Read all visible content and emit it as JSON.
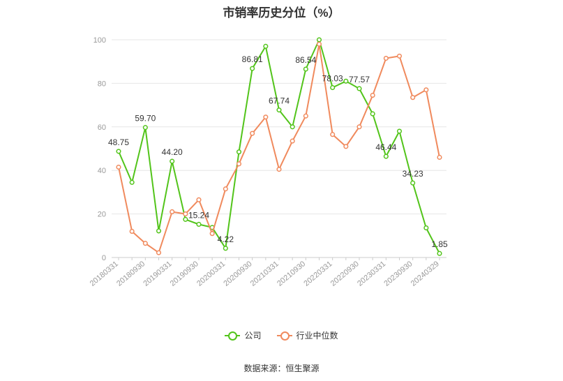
{
  "title": "市销率历史分位（%）",
  "source": "数据来源：恒生聚源",
  "colors": {
    "company": "#52c41a",
    "industry": "#f08a5d",
    "grid": "#e6e6e6",
    "axis_text": "#999999",
    "label_text": "#333333"
  },
  "chart_data": {
    "type": "line",
    "ylim": [
      0,
      100
    ],
    "yticks": [
      0,
      20,
      40,
      60,
      80,
      100
    ],
    "x": [
      "20180331",
      "",
      "20180930",
      "",
      "20190331",
      "",
      "20190930",
      "",
      "20200331",
      "",
      "20200930",
      "",
      "20210331",
      "",
      "20210930",
      "",
      "20220331",
      "",
      "20220930",
      "",
      "20230331",
      "",
      "20230930",
      "",
      "20240329"
    ],
    "series": [
      {
        "name": "公司",
        "key": "company",
        "values": [
          48.75,
          34.5,
          59.7,
          12.2,
          44.2,
          17.5,
          15.24,
          13.8,
          4.22,
          48.5,
          86.81,
          97.0,
          67.74,
          60.0,
          86.54,
          100.0,
          78.03,
          81.0,
          77.57,
          66.0,
          46.44,
          58.0,
          34.23,
          13.6,
          1.85
        ],
        "labels": [
          "48.75",
          "",
          "59.70",
          "",
          "44.20",
          "",
          "15.24",
          "",
          "4.22",
          "",
          "86.81",
          "",
          "67.74",
          "",
          "86.54",
          "",
          "78.03",
          "",
          "77.57",
          "",
          "46.44",
          "",
          "34.23",
          "",
          "1.85"
        ]
      },
      {
        "name": "行业中位数",
        "key": "industry",
        "values": [
          41.5,
          12.0,
          6.5,
          2.2,
          21.0,
          20.0,
          26.5,
          11.0,
          31.5,
          43.0,
          57.0,
          64.5,
          40.5,
          53.5,
          65.0,
          98.0,
          56.5,
          51.0,
          60.0,
          74.5,
          91.5,
          92.5,
          73.5,
          77.0,
          46.0
        ]
      }
    ]
  }
}
